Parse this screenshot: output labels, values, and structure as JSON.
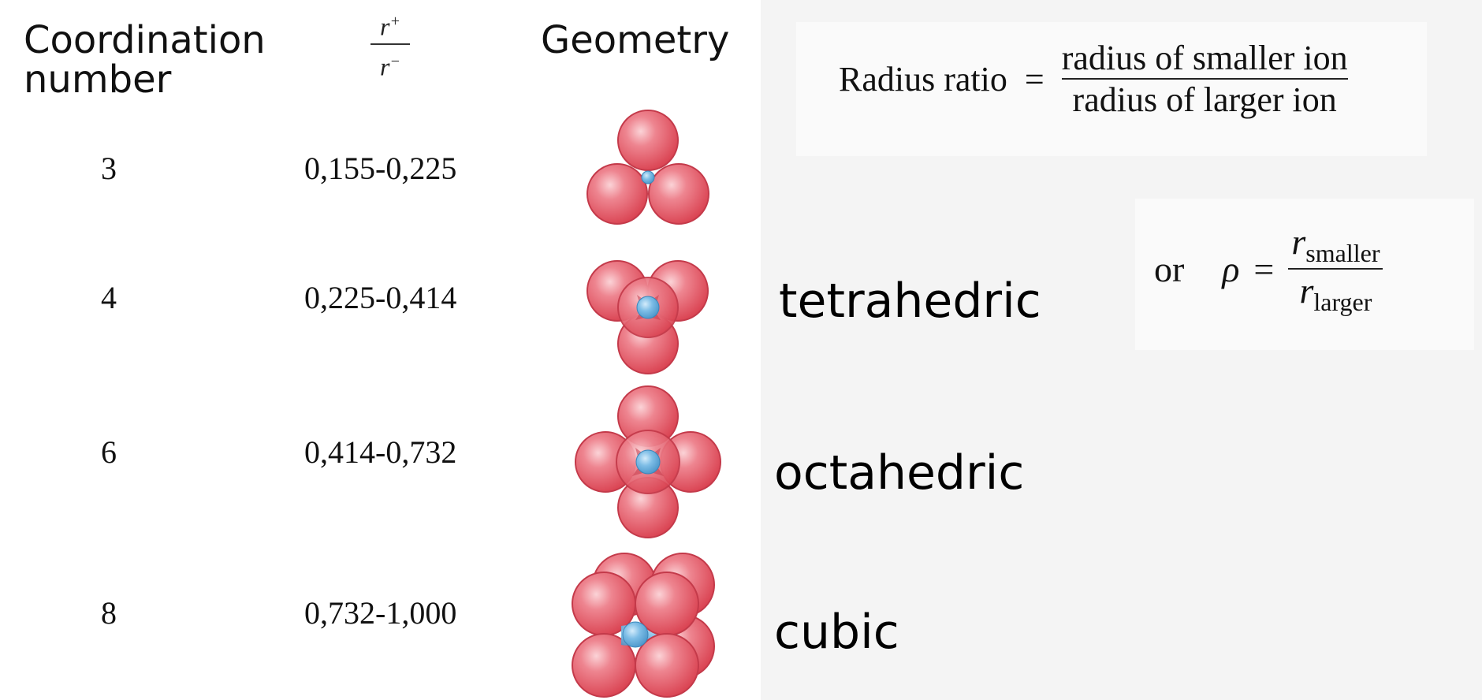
{
  "table": {
    "headers": {
      "coordination": [
        "Coordination",
        "number"
      ],
      "ratio_num": "r",
      "ratio_num_sup": "+",
      "ratio_den": "r",
      "ratio_den_sup": "−",
      "geometry": "Geometry"
    },
    "rows": [
      {
        "cn": "3",
        "range": "0,155-0,225",
        "geometry_icon": "triangular-spheres-icon",
        "label": ""
      },
      {
        "cn": "4",
        "range": "0,225-0,414",
        "geometry_icon": "tetrahedral-spheres-icon",
        "label": "tetrahedric"
      },
      {
        "cn": "6",
        "range": "0,414-0,732",
        "geometry_icon": "octahedral-spheres-icon",
        "label": "octahedric"
      },
      {
        "cn": "8",
        "range": "0,732-1,000",
        "geometry_icon": "cubic-spheres-icon",
        "label": "cubic"
      }
    ]
  },
  "formula_1": {
    "lhs": "Radius ratio",
    "eq": "=",
    "numerator": "radius of smaller ion",
    "denominator": "radius of larger ion"
  },
  "formula_2": {
    "or": "or",
    "rho": "ρ",
    "eq": "=",
    "num_r": "r",
    "num_sub": "smaller",
    "den_r": "r",
    "den_sub": "larger"
  },
  "colors": {
    "anion": "#e35a68",
    "anion_edge": "#c43a4a",
    "cation": "#5aa8dc",
    "cation_edge": "#3a86ba"
  }
}
